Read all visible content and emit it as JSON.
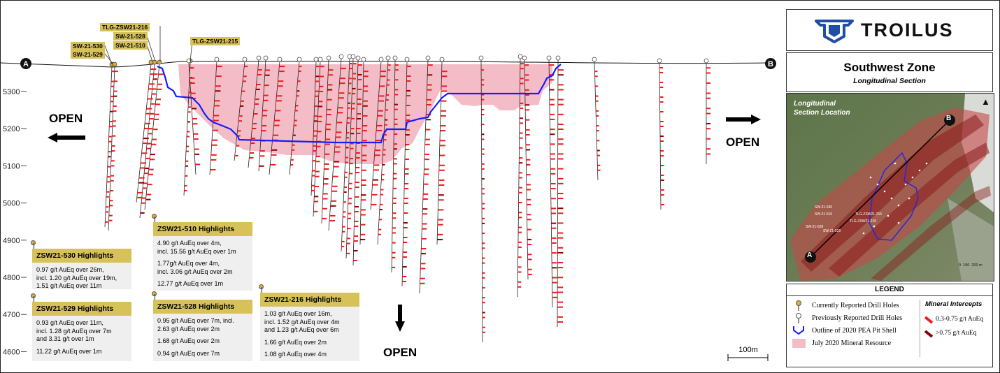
{
  "section": {
    "endpoint_left": "A",
    "endpoint_right": "B",
    "elevation_labels": [
      "5300",
      "5200",
      "5100",
      "5000",
      "4900",
      "4800",
      "4700",
      "4600"
    ],
    "open_labels": [
      "OPEN",
      "OPEN",
      "OPEN"
    ],
    "scale_label": "100m",
    "hole_labels": [
      "TLG-ZSW21-216",
      "SW-21-528",
      "SW-21-530",
      "SW-21-510",
      "SW-21-529",
      "TLG-ZSW21-215"
    ]
  },
  "highlights": [
    {
      "title": "ZSW21-530 Highlights",
      "lines": [
        "0.97 g/t AuEq over 26m,",
        "incl. 1.20 g/t AuEq over 19m,",
        "1.51 g/t AuEq over 11m"
      ]
    },
    {
      "title": "ZSW21-529 Highlights",
      "lines": [
        "0.93 g/t AuEq over 11m,",
        "incl. 1.28 g/t AuEq over 7m",
        "and 3.31 g/t over 1m",
        "",
        "11.22 g/t AuEq over 1m"
      ]
    },
    {
      "title": "ZSW21-510 Highlights",
      "lines": [
        "4.90 g/t AuEq over 4m,",
        "incl. 15.56 g/t AuEq over 1m",
        "",
        "1.77g/t AuEq over 4m,",
        "incl. 3.06 g/t AuEq over 2m",
        "",
        "12.77 g/t AuEq over 1m"
      ]
    },
    {
      "title": "ZSW21-528 Highlights",
      "lines": [
        "0.95 g/t AuEq over 7m, incl.",
        "2.63 g/t AuEq over 2m",
        "",
        "1.68 g/t AuEq over 2m",
        "",
        "0.94 g/t AuEq over 7m"
      ]
    },
    {
      "title": "ZSW21-216 Highlights",
      "lines": [
        "1.03 g/t AuEq over 16m,",
        "incl. 1.52 g/t AuEq over 4m",
        "and 1.23 g/t AuEq over 6m",
        "",
        "1.66 g/t AuEq over 2m",
        "",
        "1.08 g/t AuEq over 4m"
      ]
    }
  ],
  "panel": {
    "company": "TROILUS",
    "zone_title": "Southwest Zone",
    "zone_subtitle": "Longitudinal Section",
    "map_caption_1": "Longitudinal",
    "map_caption_2": "Section Location",
    "map_point_a": "A",
    "map_point_b": "B",
    "map_scale_labels": [
      "0",
      "100",
      "200 m"
    ],
    "map_hole_labels": [
      "SW-21-530",
      "SW-21-510",
      "TLG-ZSW21-215",
      "TLG-ZSW21-216",
      "SW-21-528",
      "SW-21-529"
    ]
  },
  "legend": {
    "title": "LEGEND",
    "items": [
      "Currently Reported Drill Holes",
      "Previously Reported Drill Holes",
      "Outline of 2020 PEA Pit Shell",
      "July 2020 Mineral Resource"
    ],
    "intercepts_title": "Mineral Intercepts",
    "intercepts": [
      "0.3-0.75 g/t AuEq",
      ">0.75 g/t AuEq"
    ]
  },
  "colors": {
    "resource": "#f4bcc6",
    "pit": "#1a1aff",
    "intercept_low": "#ee1c1c",
    "intercept_high": "#8b0000",
    "highlight": "#d7c25a",
    "current_hole": "#d9b13c"
  }
}
